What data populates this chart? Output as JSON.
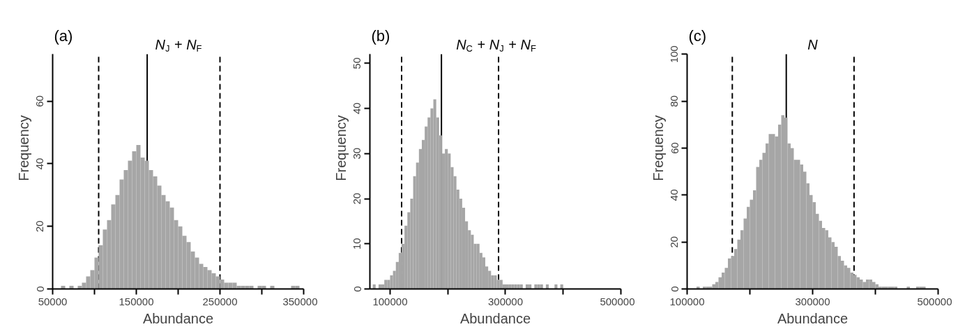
{
  "chart_data": [
    {
      "type": "histogram",
      "title": "N$_{J}$ + N$_{F}$",
      "annotations": [
        "(a)"
      ],
      "xlabel": "Abundance",
      "ylabel": "Frequency",
      "color": "#a6a6a6",
      "grid": false,
      "bins": [
        60000,
        65000,
        70000,
        75000,
        80000,
        85000,
        90000,
        95000,
        100000,
        105000,
        110000,
        115000,
        120000,
        125000,
        130000,
        135000,
        140000,
        145000,
        150000,
        155000,
        160000,
        165000,
        170000,
        175000,
        180000,
        185000,
        190000,
        195000,
        200000,
        205000,
        210000,
        215000,
        220000,
        225000,
        230000,
        235000,
        240000,
        245000,
        250000,
        255000,
        260000,
        265000,
        270000,
        275000,
        280000,
        285000,
        290000,
        295000,
        300000,
        305000,
        310000,
        315000,
        320000,
        325000,
        330000,
        335000,
        340000,
        345000
      ],
      "values": [
        1,
        0,
        1,
        0,
        1,
        2,
        4,
        6,
        10,
        14,
        19,
        22,
        27,
        30,
        35,
        38,
        41,
        44,
        46,
        42,
        41,
        38,
        36,
        33,
        30,
        28,
        26,
        22,
        20,
        17,
        15,
        12,
        10,
        8,
        7,
        6,
        5,
        4,
        3,
        2,
        2,
        2,
        1,
        1,
        1,
        1,
        0,
        1,
        1,
        0,
        1,
        0,
        0,
        0,
        0,
        1,
        1
      ],
      "xlim": [
        50000,
        350000
      ],
      "xticks": [
        50000,
        {
          "value": 100000,
          "label": null
        },
        150000,
        {
          "value": 200000,
          "label": null
        },
        250000,
        {
          "value": 300000,
          "label": null
        },
        350000
      ],
      "ylim": [
        0,
        75
      ],
      "yticks": [
        0,
        20,
        40,
        60
      ],
      "ref_lines": [
        {
          "axis": "x",
          "value": 105000,
          "line_style": "dashed",
          "color": "#000000"
        },
        {
          "axis": "x",
          "value": 163000,
          "line_style": "solid",
          "color": "#000000"
        },
        {
          "axis": "x",
          "value": 250000,
          "line_style": "dashed",
          "color": "#000000"
        }
      ]
    },
    {
      "type": "histogram",
      "title": "N$_{C}$ + N$_{J}$ + N$_{F}$",
      "annotations": [
        "(b)"
      ],
      "xlabel": "Abundance",
      "ylabel": "Frequency",
      "color": "#a6a6a6",
      "grid": false,
      "bins": [
        70000,
        75000,
        80000,
        85000,
        90000,
        95000,
        100000,
        105000,
        110000,
        115000,
        120000,
        125000,
        130000,
        135000,
        140000,
        145000,
        150000,
        155000,
        160000,
        165000,
        170000,
        175000,
        180000,
        185000,
        190000,
        195000,
        200000,
        205000,
        210000,
        215000,
        220000,
        225000,
        230000,
        235000,
        240000,
        245000,
        250000,
        255000,
        260000,
        265000,
        270000,
        275000,
        280000,
        285000,
        290000,
        295000,
        300000,
        305000,
        310000,
        315000,
        320000,
        325000,
        330000,
        335000,
        340000,
        345000,
        350000,
        355000,
        360000,
        365000,
        370000,
        375000,
        380000,
        385000,
        390000,
        395000,
        400000
      ],
      "values": [
        1,
        0,
        1,
        1,
        2,
        2,
        3,
        4,
        6,
        8,
        10,
        14,
        17,
        20,
        25,
        28,
        31,
        33,
        36,
        38,
        40,
        42,
        38,
        34,
        30,
        31,
        30,
        27,
        25,
        22,
        20,
        18,
        15,
        13,
        12,
        10,
        10,
        8,
        7,
        5,
        4,
        3,
        3,
        2,
        2,
        1,
        1,
        1,
        1,
        1,
        1,
        1,
        0,
        1,
        1,
        0,
        1,
        1,
        1,
        0,
        1,
        0,
        0,
        1,
        0,
        1
      ],
      "xlim": [
        65000,
        500000
      ],
      "xticks": [
        100000,
        {
          "value": 200000,
          "label": null
        },
        300000,
        {
          "value": 400000,
          "label": null
        },
        500000
      ],
      "ylim": [
        0,
        52
      ],
      "yticks": [
        0,
        10,
        20,
        30,
        40,
        50
      ],
      "ref_lines": [
        {
          "axis": "x",
          "value": 120000,
          "line_style": "dashed",
          "color": "#000000"
        },
        {
          "axis": "x",
          "value": 189000,
          "line_style": "solid",
          "color": "#000000"
        },
        {
          "axis": "x",
          "value": 288000,
          "line_style": "dashed",
          "color": "#000000"
        }
      ]
    },
    {
      "type": "histogram",
      "title": "N",
      "annotations": [
        "(c)"
      ],
      "xlabel": "Abundance",
      "ylabel": "Frequency",
      "color": "#a6a6a6",
      "grid": false,
      "bins": [
        115000,
        120000,
        125000,
        130000,
        135000,
        140000,
        145000,
        150000,
        155000,
        160000,
        165000,
        170000,
        175000,
        180000,
        185000,
        190000,
        195000,
        200000,
        205000,
        210000,
        215000,
        220000,
        225000,
        230000,
        235000,
        240000,
        245000,
        250000,
        255000,
        260000,
        265000,
        270000,
        275000,
        280000,
        285000,
        290000,
        295000,
        300000,
        305000,
        310000,
        315000,
        320000,
        325000,
        330000,
        335000,
        340000,
        345000,
        350000,
        355000,
        360000,
        365000,
        370000,
        375000,
        380000,
        385000,
        390000,
        395000,
        400000,
        405000,
        410000,
        415000,
        420000,
        425000,
        430000,
        435000,
        440000,
        445000,
        450000,
        455000,
        460000,
        465000,
        470000,
        475000,
        480000
      ],
      "values": [
        1,
        0,
        1,
        1,
        1,
        2,
        3,
        5,
        7,
        9,
        13,
        14,
        17,
        21,
        25,
        30,
        35,
        38,
        42,
        52,
        55,
        58,
        62,
        66,
        66,
        65,
        70,
        74,
        73,
        62,
        60,
        55,
        55,
        53,
        50,
        45,
        40,
        37,
        32,
        29,
        26,
        25,
        22,
        20,
        18,
        14,
        12,
        10,
        9,
        7,
        6,
        5,
        4,
        3,
        4,
        4,
        3,
        2,
        1,
        1,
        1,
        1,
        1,
        1,
        0,
        0,
        0,
        1,
        0,
        0,
        1,
        1,
        1
      ],
      "xlim": [
        100000,
        500000
      ],
      "xticks": [
        100000,
        {
          "value": 200000,
          "label": null
        },
        300000,
        {
          "value": 400000,
          "label": null
        },
        500000
      ],
      "ylim": [
        0,
        100
      ],
      "yticks": [
        0,
        20,
        40,
        60,
        80,
        100
      ],
      "ref_lines": [
        {
          "axis": "x",
          "value": 172000,
          "line_style": "dashed",
          "color": "#000000"
        },
        {
          "axis": "x",
          "value": 258000,
          "line_style": "solid",
          "color": "#000000"
        },
        {
          "axis": "x",
          "value": 366000,
          "line_style": "dashed",
          "color": "#000000"
        }
      ]
    }
  ]
}
